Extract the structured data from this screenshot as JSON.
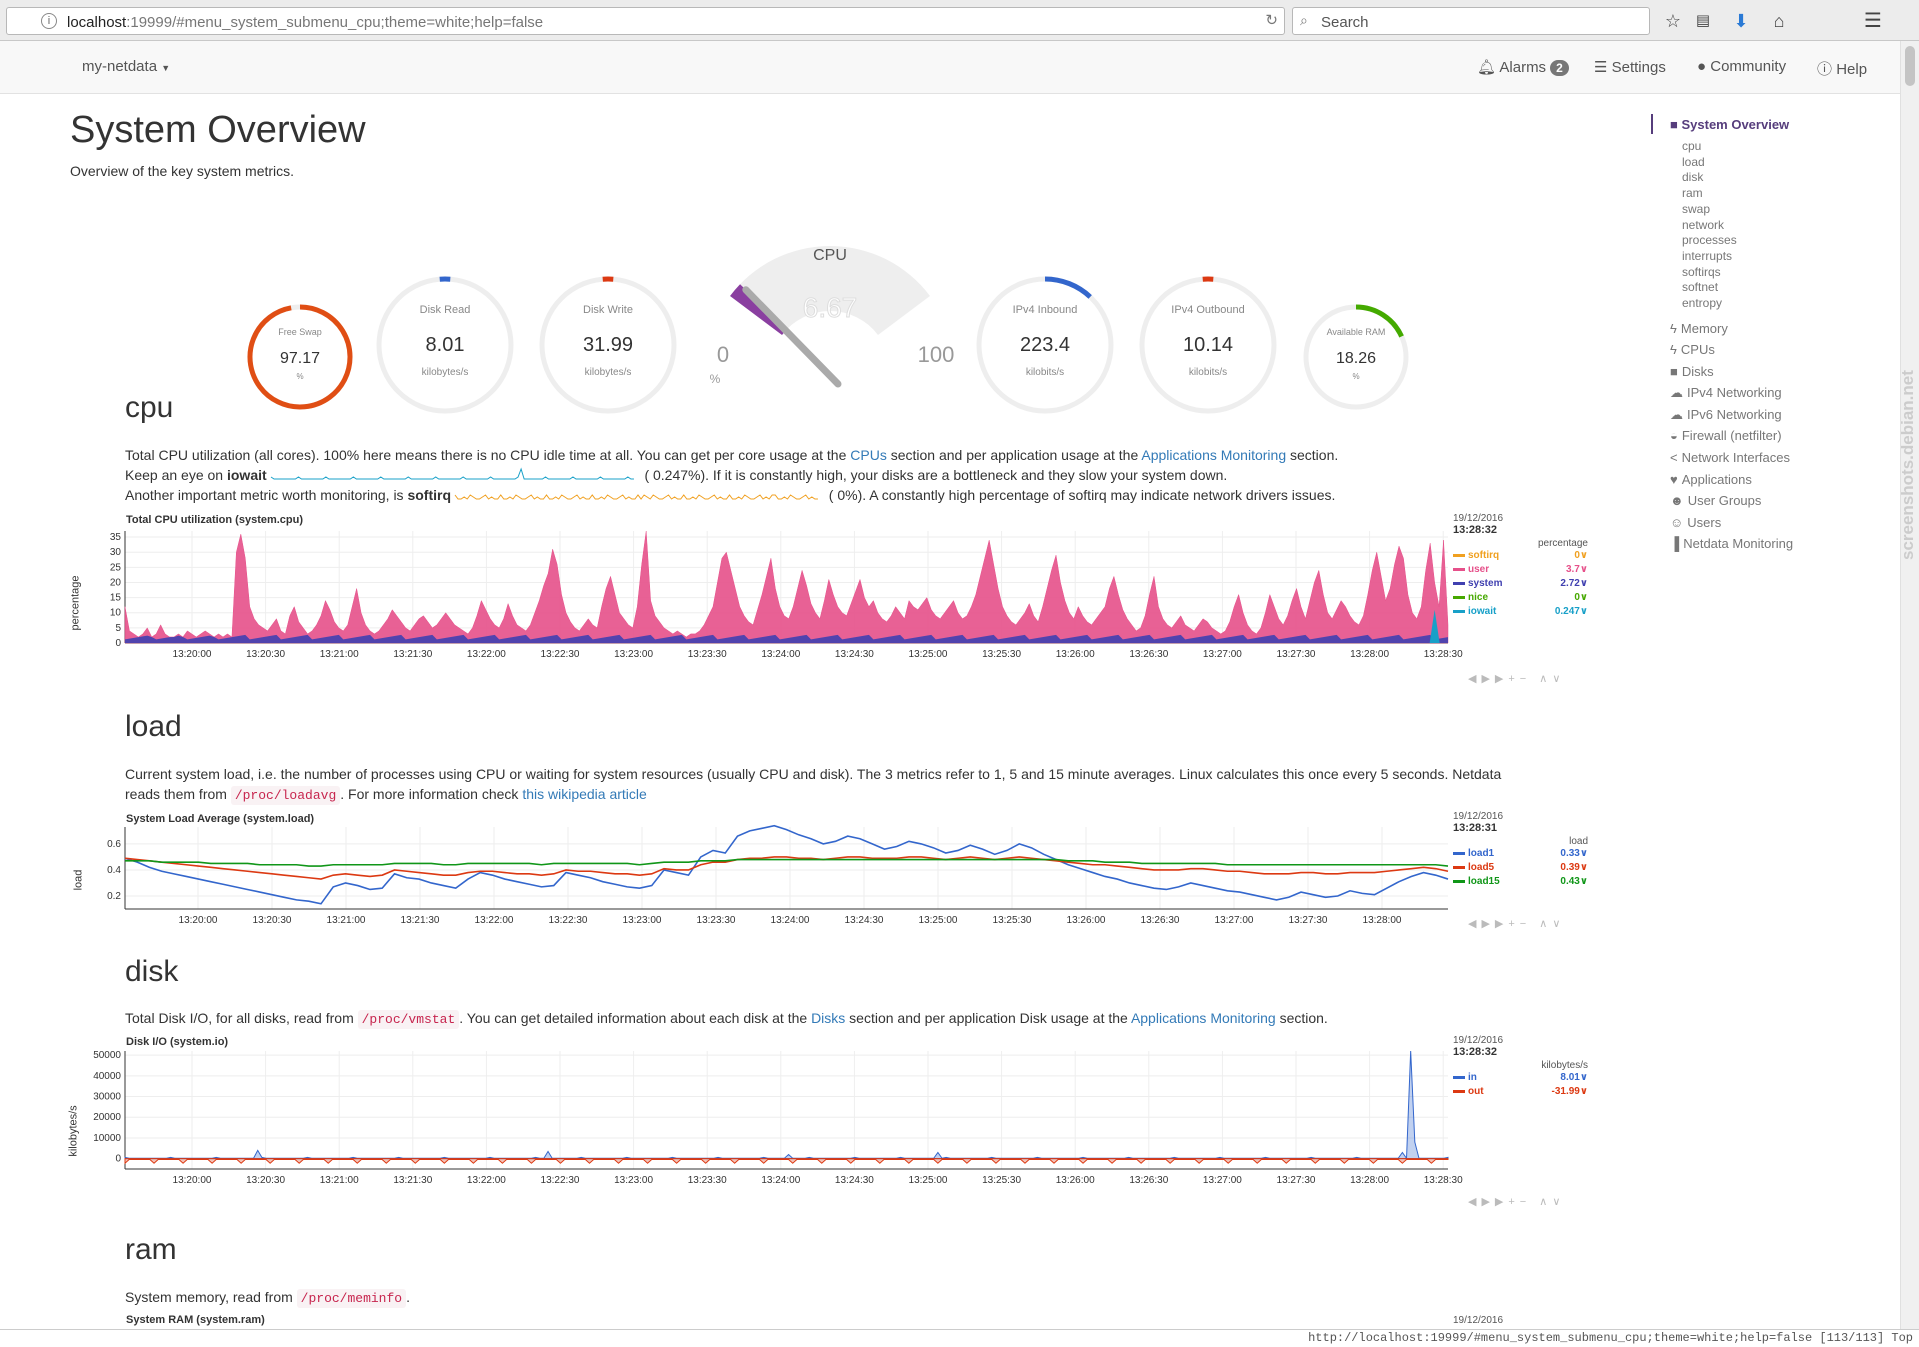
{
  "browser": {
    "url_host": "localhost",
    "url_rest": ":19999/#menu_system_submenu_cpu;theme=white;help=false",
    "search_placeholder": "Search"
  },
  "navbar": {
    "brand": "my-netdata",
    "alarms_label": "Alarms",
    "alarms_count": "2",
    "settings_label": "Settings",
    "community_label": "Community",
    "help_label": "Help"
  },
  "page": {
    "title": "System Overview",
    "lede": "Overview of the key system metrics."
  },
  "gauges": {
    "cpu_title": "CPU",
    "cpu_value": "6.67",
    "cpu_value_num": 6.67,
    "cpu_min": "0",
    "cpu_max": "100",
    "cpu_unit": "%",
    "dials": [
      {
        "name": "free-swap",
        "label": "Free Swap",
        "value": "97.17",
        "unit": "%",
        "fill": 0.9717,
        "color": "#e04e14",
        "small": true
      },
      {
        "name": "disk-read",
        "label": "Disk Read",
        "value": "8.01",
        "unit": "kilobytes/s",
        "fill": 0.02,
        "color": "#3366cc",
        "small": false
      },
      {
        "name": "disk-write",
        "label": "Disk Write",
        "value": "31.99",
        "unit": "kilobytes/s",
        "fill": 0.02,
        "color": "#dc3912",
        "small": false
      },
      {
        "name": "ipv4-inbound",
        "label": "IPv4 Inbound",
        "value": "223.4",
        "unit": "kilobits/s",
        "fill": 0.12,
        "color": "#3366cc",
        "small": false
      },
      {
        "name": "ipv4-outbound",
        "label": "IPv4 Outbound",
        "value": "10.14",
        "unit": "kilobits/s",
        "fill": 0.02,
        "color": "#dc3912",
        "small": false
      },
      {
        "name": "available-ram",
        "label": "Available RAM",
        "value": "18.26",
        "unit": "%",
        "fill": 0.1826,
        "color": "#44aa00",
        "small": true
      }
    ]
  },
  "sections": {
    "cpu": {
      "heading": "cpu",
      "line1_a": "Total CPU utilization (all cores). 100% here means there is no CPU idle time at all. You can get per core usage at the ",
      "line1_link1": "CPUs",
      "line1_b": " section and per application usage at the ",
      "line1_link2": "Applications Monitoring",
      "line1_c": " section.",
      "line2_a": "Keep an eye on ",
      "line2_b": "iowait",
      "line2_c": "(    0.247%). If it is constantly high, your disks are a bottleneck and they slow your system down.",
      "line3_a": "Another important metric worth monitoring, is ",
      "line3_b": "softirq",
      "line3_c": "(           0%). A constantly high percentage of softirq may indicate network drivers issues."
    },
    "load": {
      "heading": "load",
      "line1": "Current system load, i.e. the number of processes using CPU or waiting for system resources (usually CPU and disk). The 3 metrics refer to 1, 5 and 15 minute averages. Linux calculates this once every 5 seconds. Netdata",
      "line2_a": "reads them from ",
      "line2_code": "/proc/loadavg",
      "line2_b": ". For more information check ",
      "line2_link": "this wikipedia article"
    },
    "disk": {
      "heading": "disk",
      "line1_a": "Total Disk I/O, for all disks, read from ",
      "line1_code": "/proc/vmstat",
      "line1_b": ". You can get detailed information about each disk at the ",
      "line1_link1": "Disks",
      "line1_c": " section and per application Disk usage at the ",
      "line1_link2": "Applications Monitoring",
      "line1_d": " section."
    },
    "ram": {
      "heading": "ram",
      "line1_a": "System memory, read from ",
      "line1_code": "/proc/meminfo",
      "line1_b": ".",
      "chart_title": "System RAM (system.ram)",
      "legend_date": "19/12/2016"
    }
  },
  "chart_data": [
    {
      "type": "area",
      "id": "cpu",
      "title": "Total CPU utilization (system.cpu)",
      "ylabel": "percentage",
      "ylim": [
        0,
        37
      ],
      "yticks": [
        0,
        5,
        10,
        15,
        20,
        25,
        30,
        35
      ],
      "xticks": [
        "13:20:00",
        "13:20:30",
        "13:21:00",
        "13:21:30",
        "13:22:00",
        "13:22:30",
        "13:23:00",
        "13:23:30",
        "13:24:00",
        "13:24:30",
        "13:25:00",
        "13:25:30",
        "13:26:00",
        "13:26:30",
        "13:27:00",
        "13:27:30",
        "13:28:00",
        "13:28:30"
      ],
      "legend_date": "19/12/2016",
      "legend_time": "13:28:32",
      "legend_unit": "percentage",
      "series": [
        {
          "name": "softirq",
          "value": "0",
          "color": "#f0a020"
        },
        {
          "name": "user",
          "value": "3.7",
          "color": "#e6508a"
        },
        {
          "name": "system",
          "value": "2.72",
          "color": "#4040b0"
        },
        {
          "name": "nice",
          "value": "0",
          "color": "#46a800"
        },
        {
          "name": "iowait",
          "value": "0.247",
          "color": "#18a0c8"
        }
      ],
      "user_values": [
        12,
        4,
        3,
        2,
        3,
        5,
        2,
        3,
        6,
        3,
        2,
        2,
        3,
        2,
        4,
        3,
        2,
        3,
        4,
        3,
        2,
        3,
        2,
        3,
        2,
        30,
        36,
        28,
        12,
        8,
        6,
        5,
        4,
        6,
        8,
        4,
        3,
        9,
        12,
        7,
        5,
        3,
        4,
        6,
        9,
        14,
        11,
        7,
        5,
        4,
        6,
        12,
        18,
        10,
        6,
        4,
        3,
        4,
        6,
        8,
        11,
        9,
        7,
        5,
        4,
        6,
        8,
        9,
        7,
        5,
        6,
        8,
        10,
        8,
        6,
        5,
        4,
        3,
        5,
        9,
        14,
        11,
        8,
        6,
        5,
        8,
        13,
        9,
        6,
        5,
        4,
        6,
        10,
        14,
        19,
        23,
        31,
        26,
        16,
        10,
        7,
        5,
        4,
        6,
        8,
        6,
        5,
        12,
        18,
        22,
        16,
        10,
        8,
        6,
        5,
        12,
        26,
        37,
        14,
        9,
        7,
        5,
        4,
        3,
        4,
        3,
        2,
        3,
        3,
        4,
        6,
        9,
        12,
        20,
        28,
        30,
        24,
        18,
        12,
        9,
        7,
        6,
        11,
        16,
        22,
        28,
        18,
        12,
        9,
        8,
        12,
        18,
        24,
        19,
        13,
        10,
        8,
        14,
        21,
        16,
        12,
        10,
        9,
        13,
        17,
        21,
        15,
        12,
        14,
        10,
        8,
        7,
        9,
        12,
        10,
        8,
        14,
        12,
        11,
        13,
        15,
        11,
        9,
        8,
        10,
        12,
        14,
        10,
        8,
        9,
        12,
        16,
        22,
        28,
        34,
        26,
        18,
        12,
        9,
        7,
        6,
        8,
        10,
        13,
        9,
        7,
        12,
        18,
        24,
        29,
        20,
        14,
        10,
        8,
        12,
        9,
        7,
        6,
        8,
        10,
        12,
        18,
        22,
        16,
        11,
        8,
        6,
        4,
        5,
        9,
        16,
        22,
        12,
        8,
        6,
        5,
        7,
        9,
        6,
        5,
        4,
        6,
        8,
        7,
        5,
        4,
        3,
        4,
        7,
        12,
        16,
        10,
        6,
        4,
        3,
        5,
        10,
        16,
        12,
        8,
        6,
        9,
        14,
        18,
        12,
        8,
        14,
        20,
        24,
        16,
        10,
        8,
        11,
        14,
        12,
        9,
        7,
        6,
        9,
        16,
        24,
        30,
        22,
        14,
        18,
        26,
        32,
        28,
        16,
        10,
        8,
        12,
        24,
        33,
        20,
        12,
        34,
        6
      ]
    },
    {
      "type": "line",
      "id": "load",
      "title": "System Load Average (system.load)",
      "ylabel": "load",
      "ylim": [
        0.1,
        0.73
      ],
      "yticks": [
        0.2,
        0.4,
        0.6
      ],
      "xticks": [
        "13:20:00",
        "13:20:30",
        "13:21:00",
        "13:21:30",
        "13:22:00",
        "13:22:30",
        "13:23:00",
        "13:23:30",
        "13:24:00",
        "13:24:30",
        "13:25:00",
        "13:25:30",
        "13:26:00",
        "13:26:30",
        "13:27:00",
        "13:27:30",
        "13:28:00"
      ],
      "legend_date": "19/12/2016",
      "legend_time": "13:28:31",
      "legend_unit": "load",
      "series": [
        {
          "name": "load1",
          "value": "0.33",
          "color": "#3366cc",
          "values": [
            0.49,
            0.46,
            0.42,
            0.39,
            0.37,
            0.35,
            0.33,
            0.31,
            0.29,
            0.27,
            0.25,
            0.23,
            0.21,
            0.19,
            0.17,
            0.16,
            0.14,
            0.27,
            0.3,
            0.28,
            0.25,
            0.26,
            0.37,
            0.34,
            0.33,
            0.3,
            0.28,
            0.26,
            0.33,
            0.38,
            0.36,
            0.33,
            0.31,
            0.29,
            0.27,
            0.28,
            0.38,
            0.36,
            0.34,
            0.31,
            0.29,
            0.27,
            0.26,
            0.28,
            0.4,
            0.38,
            0.36,
            0.5,
            0.55,
            0.53,
            0.66,
            0.7,
            0.72,
            0.74,
            0.71,
            0.67,
            0.64,
            0.6,
            0.62,
            0.66,
            0.64,
            0.6,
            0.56,
            0.58,
            0.62,
            0.6,
            0.57,
            0.53,
            0.55,
            0.59,
            0.56,
            0.52,
            0.55,
            0.6,
            0.57,
            0.52,
            0.48,
            0.44,
            0.41,
            0.38,
            0.35,
            0.33,
            0.3,
            0.28,
            0.26,
            0.25,
            0.27,
            0.3,
            0.28,
            0.26,
            0.24,
            0.23,
            0.21,
            0.19,
            0.17,
            0.19,
            0.23,
            0.21,
            0.19,
            0.2,
            0.24,
            0.22,
            0.21,
            0.26,
            0.31,
            0.35,
            0.38,
            0.36,
            0.33
          ]
        },
        {
          "name": "load5",
          "value": "0.39",
          "color": "#dc3912",
          "values": [
            0.49,
            0.48,
            0.47,
            0.46,
            0.45,
            0.44,
            0.43,
            0.42,
            0.41,
            0.4,
            0.39,
            0.38,
            0.37,
            0.36,
            0.35,
            0.34,
            0.33,
            0.36,
            0.37,
            0.36,
            0.35,
            0.36,
            0.4,
            0.39,
            0.38,
            0.37,
            0.36,
            0.36,
            0.38,
            0.39,
            0.39,
            0.38,
            0.37,
            0.37,
            0.36,
            0.37,
            0.4,
            0.39,
            0.39,
            0.38,
            0.37,
            0.37,
            0.36,
            0.37,
            0.41,
            0.4,
            0.4,
            0.44,
            0.46,
            0.46,
            0.48,
            0.49,
            0.49,
            0.5,
            0.5,
            0.49,
            0.49,
            0.48,
            0.49,
            0.5,
            0.5,
            0.49,
            0.49,
            0.49,
            0.5,
            0.5,
            0.49,
            0.48,
            0.49,
            0.5,
            0.49,
            0.48,
            0.49,
            0.5,
            0.49,
            0.48,
            0.47,
            0.46,
            0.45,
            0.44,
            0.44,
            0.43,
            0.42,
            0.41,
            0.4,
            0.4,
            0.4,
            0.41,
            0.41,
            0.4,
            0.39,
            0.39,
            0.38,
            0.37,
            0.37,
            0.37,
            0.38,
            0.38,
            0.37,
            0.37,
            0.38,
            0.38,
            0.38,
            0.39,
            0.4,
            0.41,
            0.42,
            0.41,
            0.39
          ]
        },
        {
          "name": "load15",
          "value": "0.43",
          "color": "#109618",
          "values": [
            0.47,
            0.47,
            0.47,
            0.46,
            0.46,
            0.46,
            0.46,
            0.45,
            0.45,
            0.45,
            0.45,
            0.44,
            0.44,
            0.44,
            0.44,
            0.43,
            0.43,
            0.44,
            0.44,
            0.44,
            0.44,
            0.44,
            0.45,
            0.45,
            0.45,
            0.45,
            0.44,
            0.44,
            0.45,
            0.45,
            0.45,
            0.45,
            0.45,
            0.45,
            0.44,
            0.45,
            0.45,
            0.45,
            0.45,
            0.45,
            0.45,
            0.45,
            0.44,
            0.45,
            0.46,
            0.46,
            0.46,
            0.47,
            0.47,
            0.47,
            0.48,
            0.48,
            0.48,
            0.48,
            0.48,
            0.48,
            0.48,
            0.48,
            0.48,
            0.48,
            0.48,
            0.48,
            0.48,
            0.48,
            0.48,
            0.48,
            0.48,
            0.48,
            0.48,
            0.48,
            0.48,
            0.48,
            0.48,
            0.48,
            0.48,
            0.48,
            0.48,
            0.47,
            0.47,
            0.47,
            0.46,
            0.46,
            0.46,
            0.45,
            0.45,
            0.45,
            0.45,
            0.45,
            0.45,
            0.45,
            0.44,
            0.44,
            0.44,
            0.44,
            0.44,
            0.44,
            0.44,
            0.44,
            0.44,
            0.44,
            0.44,
            0.44,
            0.44,
            0.44,
            0.44,
            0.44,
            0.44,
            0.44,
            0.43
          ]
        }
      ]
    },
    {
      "type": "area",
      "id": "disk",
      "title": "Disk I/O (system.io)",
      "ylabel": "kilobytes/s",
      "ylim": [
        -5000,
        52000
      ],
      "yticks": [
        0,
        10000,
        20000,
        30000,
        40000,
        50000
      ],
      "xticks": [
        "13:20:00",
        "13:20:30",
        "13:21:00",
        "13:21:30",
        "13:22:00",
        "13:22:30",
        "13:23:00",
        "13:23:30",
        "13:24:00",
        "13:24:30",
        "13:25:00",
        "13:25:30",
        "13:26:00",
        "13:26:30",
        "13:27:00",
        "13:27:30",
        "13:28:00",
        "13:28:30"
      ],
      "legend_date": "19/12/2016",
      "legend_time": "13:28:32",
      "legend_unit": "kilobytes/s",
      "series": [
        {
          "name": "in",
          "value": "8.01",
          "color": "#3366cc"
        },
        {
          "name": "out",
          "value": "-31.99",
          "color": "#dc3912"
        }
      ]
    }
  ],
  "sidenav": {
    "active": "System Overview",
    "sub": [
      "cpu",
      "load",
      "disk",
      "ram",
      "swap",
      "network",
      "processes",
      "interrupts",
      "softirqs",
      "softnet",
      "entropy"
    ],
    "main": [
      {
        "label": "Memory",
        "icon": "bolt-icon"
      },
      {
        "label": "CPUs",
        "icon": "bolt-icon"
      },
      {
        "label": "Disks",
        "icon": "folder-icon"
      },
      {
        "label": "IPv4 Networking",
        "icon": "cloud-icon"
      },
      {
        "label": "IPv6 Networking",
        "icon": "cloud-icon"
      },
      {
        "label": "Firewall (netfilter)",
        "icon": "shield-icon"
      },
      {
        "label": "Network Interfaces",
        "icon": "share-icon"
      },
      {
        "label": "Applications",
        "icon": "heartbeat-icon"
      },
      {
        "label": "User Groups",
        "icon": "users-icon"
      },
      {
        "label": "Users",
        "icon": "user-icon"
      },
      {
        "label": "Netdata Monitoring",
        "icon": "bar-chart-icon"
      }
    ]
  },
  "statusbar": {
    "text": "http://localhost:19999/#menu_system_submenu_cpu;theme=white;help=false [113/113] Top"
  },
  "watermark": "screenshots.debian.net"
}
